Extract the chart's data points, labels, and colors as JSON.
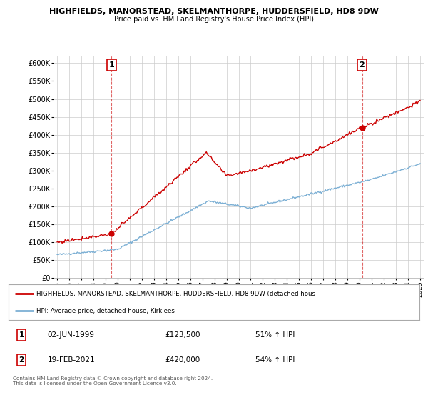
{
  "title1": "HIGHFIELDS, MANORSTEAD, SKELMANTHORPE, HUDDERSFIELD, HD8 9DW",
  "title2": "Price paid vs. HM Land Registry's House Price Index (HPI)",
  "ylim": [
    0,
    620000
  ],
  "yticks": [
    0,
    50000,
    100000,
    150000,
    200000,
    250000,
    300000,
    350000,
    400000,
    450000,
    500000,
    550000,
    600000
  ],
  "ytick_labels": [
    "£0",
    "£50K",
    "£100K",
    "£150K",
    "£200K",
    "£250K",
    "£300K",
    "£350K",
    "£400K",
    "£450K",
    "£500K",
    "£550K",
    "£600K"
  ],
  "bg_color": "#ffffff",
  "grid_color": "#cccccc",
  "red_color": "#cc0000",
  "blue_color": "#7bafd4",
  "sale1_x": 4.5,
  "sale1_price": 123500,
  "sale2_x": 25.2,
  "sale2_price": 420000,
  "legend_line1": "HIGHFIELDS, MANORSTEAD, SKELMANTHORPE, HUDDERSFIELD, HD8 9DW (detached hous",
  "legend_line2": "HPI: Average price, detached house, Kirklees",
  "annotation1_date": "02-JUN-1999",
  "annotation1_price": "£123,500",
  "annotation1_hpi": "51% ↑ HPI",
  "annotation2_date": "19-FEB-2021",
  "annotation2_price": "£420,000",
  "annotation2_hpi": "54% ↑ HPI",
  "footer": "Contains HM Land Registry data © Crown copyright and database right 2024.\nThis data is licensed under the Open Government Licence v3.0.",
  "x_start_year": 1995,
  "x_end_year": 2025
}
